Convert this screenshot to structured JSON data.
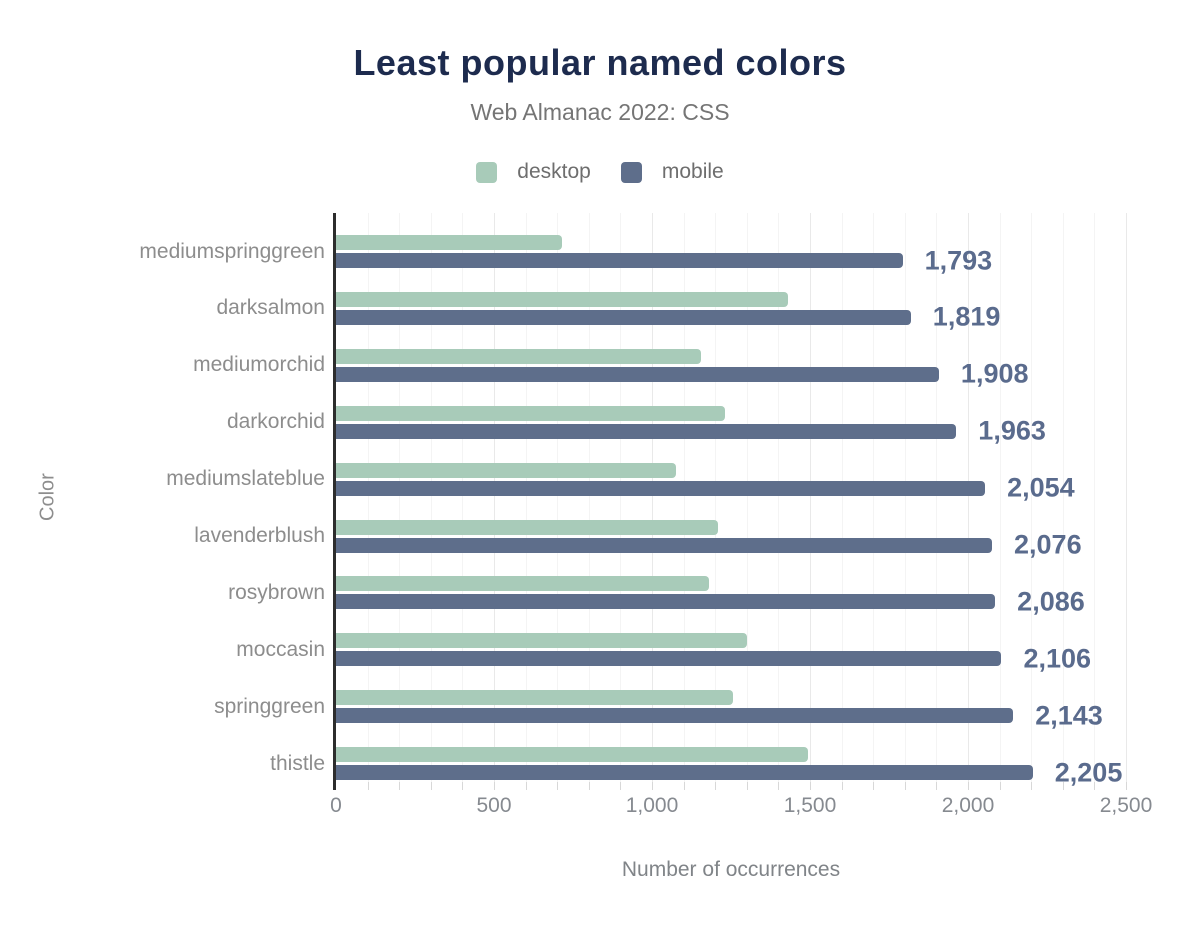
{
  "header": {
    "title": "Least popular named colors",
    "subtitle": "Web Almanac 2022: CSS"
  },
  "axes": {
    "x_title": "Number of occurrences",
    "y_title": "Color"
  },
  "colors": {
    "title_text": "#1d2b4e",
    "subtitle_text": "#757575",
    "legend_text": "#6e6e6e",
    "category_text": "#8d8d8d",
    "tick_text": "#868a90",
    "value_text": "#5a6b8d",
    "desktop_bar": "#a8cbb9",
    "mobile_bar": "#5e6e8b",
    "gridline_minor": "#f4f4f4",
    "gridline_major": "#e9e9e9",
    "axis_line": "#2d2d2d"
  },
  "chart_data": {
    "type": "bar",
    "orientation": "horizontal",
    "title": "Least popular named colors",
    "subtitle": "Web Almanac 2022: CSS",
    "xlabel": "Number of occurrences",
    "ylabel": "Color",
    "xlim": [
      0,
      2500
    ],
    "x_ticks": [
      0,
      500,
      1000,
      1500,
      2000,
      2500
    ],
    "x_tick_labels": [
      "0",
      "500",
      "1,000",
      "1,500",
      "2,000",
      "2,500"
    ],
    "minor_grid_step": 100,
    "grid": true,
    "legend_position": "top",
    "categories": [
      "mediumspringgreen",
      "darksalmon",
      "mediumorchid",
      "darkorchid",
      "mediumslateblue",
      "lavenderblush",
      "rosybrown",
      "moccasin",
      "springgreen",
      "thistle"
    ],
    "series": [
      {
        "name": "desktop",
        "color": "#a8cbb9",
        "values": [
          715,
          1430,
          1155,
          1230,
          1075,
          1210,
          1180,
          1300,
          1255,
          1495
        ]
      },
      {
        "name": "mobile",
        "color": "#5e6e8b",
        "values": [
          1793,
          1819,
          1908,
          1963,
          2054,
          2076,
          2086,
          2106,
          2143,
          2205
        ],
        "labels": [
          "1,793",
          "1,819",
          "1,908",
          "1,963",
          "2,054",
          "2,076",
          "2,086",
          "2,106",
          "2,143",
          "2,205"
        ]
      }
    ]
  }
}
